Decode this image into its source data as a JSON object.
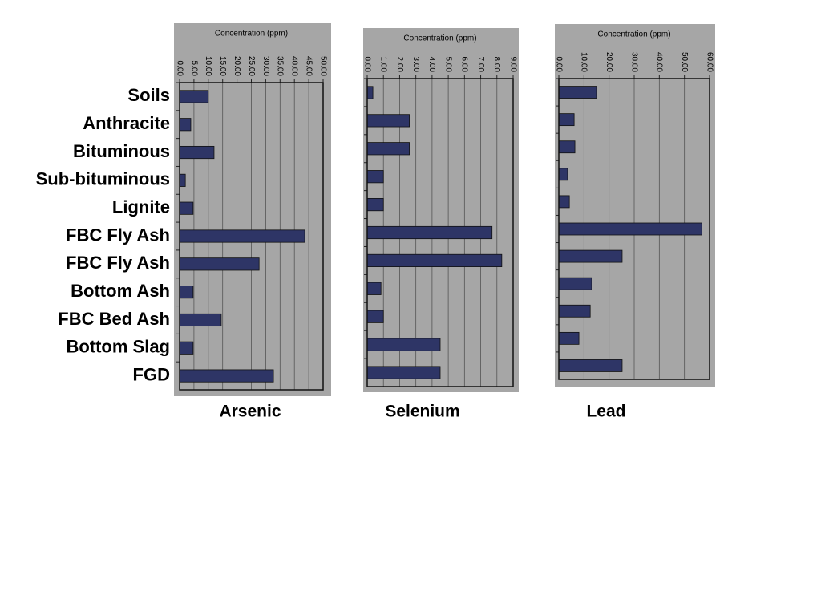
{
  "categories": [
    "Soils",
    "Anthracite",
    "Bituminous",
    "Sub-bituminous",
    "Lignite",
    "FBC Fly Ash",
    "FBC Fly Ash",
    "Bottom Ash",
    "FBC Bed Ash",
    "Bottom Slag",
    "FGD"
  ],
  "chart_data": [
    {
      "type": "bar",
      "orientation": "horizontal",
      "title": "Concentration (ppm)",
      "label": "Arsenic",
      "color": "#2e3566",
      "values": [
        10.0,
        3.9,
        12.0,
        2.0,
        4.7,
        43.6,
        27.7,
        4.7,
        14.5,
        4.7,
        32.7
      ],
      "xlim": [
        0,
        50
      ],
      "xticks": [
        {
          "value": 0,
          "label": "0.00"
        },
        {
          "value": 5,
          "label": "5.00"
        },
        {
          "value": 10,
          "label": "10.00"
        },
        {
          "value": 15,
          "label": "15.00"
        },
        {
          "value": 20,
          "label": "20.00"
        },
        {
          "value": 25,
          "label": "25.00"
        },
        {
          "value": 30,
          "label": "30.00"
        },
        {
          "value": 35,
          "label": "35.00"
        },
        {
          "value": 40,
          "label": "40.00"
        },
        {
          "value": 45,
          "label": "45.00"
        },
        {
          "value": 50,
          "label": "50.00"
        }
      ],
      "grid": true
    },
    {
      "type": "bar",
      "orientation": "horizontal",
      "title": "Concentration (ppm)",
      "label": "Selenium",
      "color": "#2e3566",
      "values": [
        0.35,
        2.6,
        2.6,
        1.0,
        1.0,
        7.7,
        8.3,
        0.85,
        1.0,
        4.5,
        4.5
      ],
      "xlim": [
        0,
        9
      ],
      "xticks": [
        {
          "value": 0,
          "label": "0.00"
        },
        {
          "value": 1,
          "label": "1.00"
        },
        {
          "value": 2,
          "label": "2.00"
        },
        {
          "value": 3,
          "label": "3.00"
        },
        {
          "value": 4,
          "label": "4.00"
        },
        {
          "value": 5,
          "label": "5.00"
        },
        {
          "value": 6,
          "label": "6.00"
        },
        {
          "value": 7,
          "label": "7.00"
        },
        {
          "value": 8,
          "label": "8.00"
        },
        {
          "value": 9,
          "label": "9.00"
        }
      ],
      "grid": true
    },
    {
      "type": "bar",
      "orientation": "horizontal",
      "title": "Concentration (ppm)",
      "label": "Lead",
      "color": "#2e3566",
      "values": [
        15.0,
        6.1,
        6.4,
        3.5,
        4.2,
        56.9,
        25.2,
        13.1,
        12.5,
        8.0,
        25.2
      ],
      "xlim": [
        0,
        60
      ],
      "xticks": [
        {
          "value": 0,
          "label": "0.00"
        },
        {
          "value": 10,
          "label": "10.00"
        },
        {
          "value": 20,
          "label": "20.00"
        },
        {
          "value": 30,
          "label": "30.00"
        },
        {
          "value": 40,
          "label": "40.00"
        },
        {
          "value": 50,
          "label": "50.00"
        },
        {
          "value": 60,
          "label": "60.00"
        }
      ],
      "grid": true
    }
  ]
}
